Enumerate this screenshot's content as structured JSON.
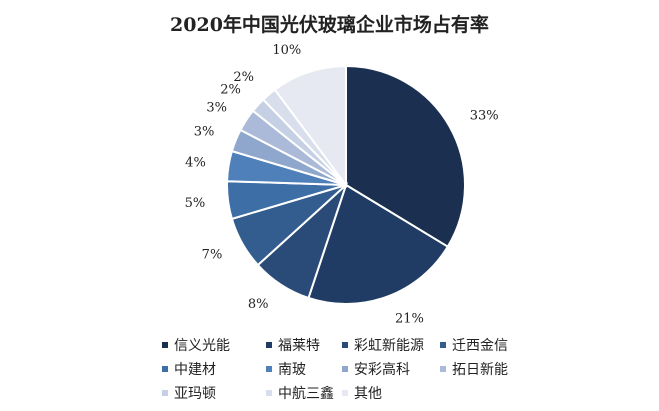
{
  "chart_data": {
    "type": "pie",
    "title": "2020年中国光伏玻璃企业市场占有率",
    "slices": [
      {
        "label": "信义光能",
        "value": 33,
        "display": "33%",
        "color": "#1b3050"
      },
      {
        "label": "福莱特",
        "value": 21,
        "display": "21%",
        "color": "#213c64"
      },
      {
        "label": "彩虹新能源",
        "value": 8,
        "display": "8%",
        "color": "#2a4b78"
      },
      {
        "label": "迁西金信",
        "value": 7,
        "display": "7%",
        "color": "#335d8f"
      },
      {
        "label": "中建材",
        "value": 5,
        "display": "5%",
        "color": "#3d6ea6"
      },
      {
        "label": "南玻",
        "value": 4,
        "display": "4%",
        "color": "#4f80b9"
      },
      {
        "label": "安彩高科",
        "value": 3,
        "display": "3%",
        "color": "#8fa7cc"
      },
      {
        "label": "拓日新能",
        "value": 3,
        "display": "3%",
        "color": "#aabad8"
      },
      {
        "label": "亚玛顿",
        "value": 2,
        "display": "2%",
        "color": "#c6d0e4"
      },
      {
        "label": "中航三鑫",
        "value": 2,
        "display": "2%",
        "color": "#d8deeb"
      },
      {
        "label": "其他",
        "value": 10,
        "display": "10%",
        "color": "#e6e9f2"
      }
    ],
    "legend_position": "bottom"
  }
}
